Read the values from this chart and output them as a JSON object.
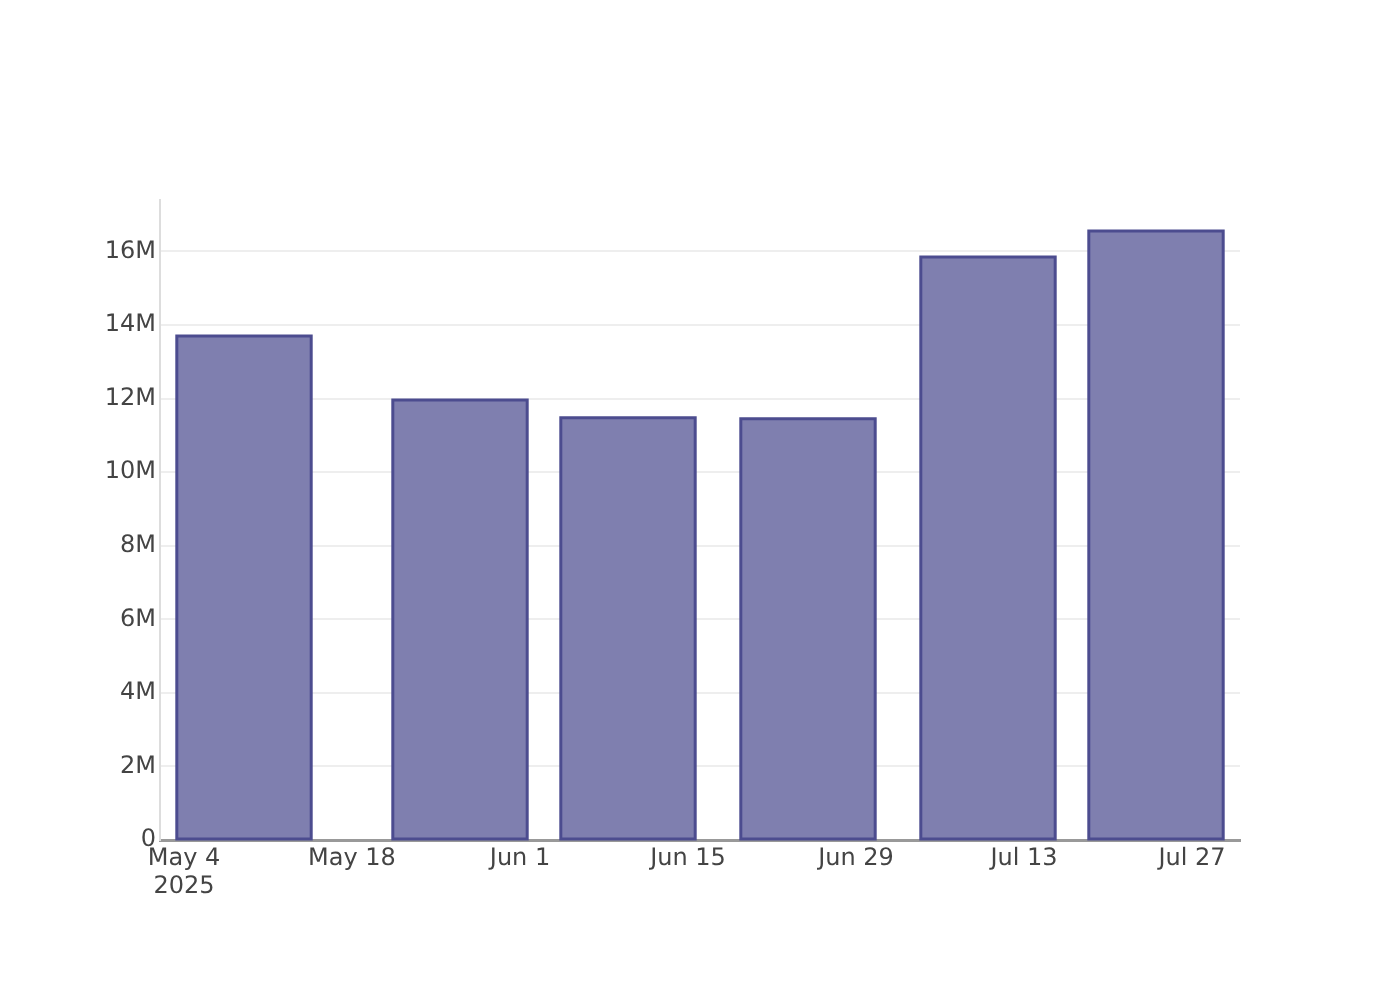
{
  "chart_data": {
    "type": "bar",
    "x": [
      "2025-05-09",
      "2025-05-27",
      "2025-06-10",
      "2025-06-25",
      "2025-07-10",
      "2025-07-24"
    ],
    "values": [
      13700000,
      11960000,
      11480000,
      11450000,
      15850000,
      16560000
    ],
    "color": "#7f7faf",
    "xlim": [
      "2025-05-02",
      "2025-07-31"
    ],
    "xticks": [
      {
        "value": "2025-05-04",
        "label": "May 4\n2025"
      },
      {
        "value": "2025-05-18",
        "label": "May 18"
      },
      {
        "value": "2025-06-01",
        "label": "Jun 1"
      },
      {
        "value": "2025-06-15",
        "label": "Jun 15"
      },
      {
        "value": "2025-06-29",
        "label": "Jun 29"
      },
      {
        "value": "2025-07-13",
        "label": "Jul 13"
      },
      {
        "value": "2025-07-27",
        "label": "Jul 27"
      }
    ],
    "ylim": [
      0,
      17400000
    ],
    "yticks": [
      0,
      {
        "value": 2000000,
        "label": "2M"
      },
      {
        "value": 4000000,
        "label": "4M"
      },
      {
        "value": 6000000,
        "label": "6M"
      },
      {
        "value": 8000000,
        "label": "8M"
      },
      {
        "value": 10000000,
        "label": "10M"
      },
      {
        "value": 12000000,
        "label": "12M"
      },
      {
        "value": 14000000,
        "label": "14M"
      },
      {
        "value": 16000000,
        "label": "16M"
      }
    ],
    "grid": "y"
  }
}
